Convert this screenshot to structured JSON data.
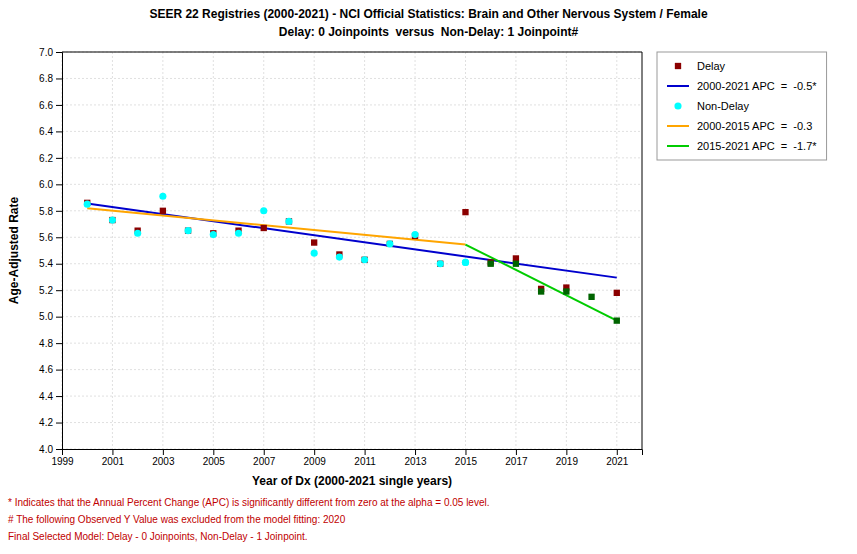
{
  "chart_data": {
    "type": "scatter",
    "title": "SEER 22 Registries (2000-2021) - NCI Official Statistics: Brain and Other Nervous System / Female",
    "subtitle": "Delay: 0 Joinpoints  versus  Non-Delay: 1 Joinpoint#",
    "x_label": "Year of Dx (2000-2021 single years)",
    "y_label": "Age-Adjusted Rate",
    "xlim": [
      1999,
      2022
    ],
    "ylim": [
      4.0,
      7.0
    ],
    "xticks": [
      1999,
      2001,
      2003,
      2005,
      2007,
      2009,
      2011,
      2013,
      2015,
      2017,
      2019,
      2021
    ],
    "yticks": [
      {
        "value": 4.0,
        "label": "4.0"
      },
      4.2,
      4.4,
      4.6,
      4.8,
      {
        "value": 5.0,
        "label": "5.0"
      },
      5.2,
      5.4,
      5.6,
      5.8,
      {
        "value": 6.0,
        "label": "6.0"
      },
      6.2,
      6.4,
      6.6,
      6.8,
      {
        "value": 7.0,
        "label": "7.0"
      }
    ],
    "grid": true,
    "legend": "right",
    "series": [
      {
        "name": "Delay",
        "type": "scatter",
        "marker": "square",
        "color": "#8B0000",
        "x": [
          2000,
          2001,
          2002,
          2003,
          2004,
          2005,
          2006,
          2007,
          2008,
          2009,
          2010,
          2011,
          2012,
          2013,
          2014,
          2015,
          2016,
          2017,
          2018,
          2019,
          2021
        ],
        "values": [
          5.86,
          5.73,
          5.65,
          5.8,
          5.65,
          5.63,
          5.65,
          5.67,
          5.72,
          5.56,
          5.47,
          5.43,
          5.55,
          5.61,
          5.4,
          5.79,
          5.41,
          5.44,
          5.21,
          5.22,
          5.18
        ]
      },
      {
        "name": "2000-2021 APC  =  -0.5*",
        "type": "line",
        "color": "#0000CD",
        "x": [
          2000,
          2021
        ],
        "values": [
          5.855,
          5.295
        ]
      },
      {
        "name": "Non-Delay",
        "type": "scatter",
        "marker": "circle",
        "color": "#00FFFF",
        "x": [
          2000,
          2001,
          2002,
          2003,
          2004,
          2005,
          2006,
          2007,
          2008,
          2009,
          2010,
          2011,
          2012,
          2013,
          2014,
          2015
        ],
        "values": [
          5.85,
          5.73,
          5.63,
          5.91,
          5.65,
          5.62,
          5.63,
          5.8,
          5.72,
          5.48,
          5.45,
          5.43,
          5.55,
          5.62,
          5.4,
          5.41
        ]
      },
      {
        "name": "2000-2015 APC  =  -0.3",
        "type": "line",
        "color": "#FFA500",
        "x": [
          2000,
          2015
        ],
        "values": [
          5.82,
          5.545
        ]
      },
      {
        "name": "2015-2021 APC  =  -1.7*",
        "type": "line",
        "color": "#00CC00",
        "x": [
          2015,
          2021
        ],
        "values": [
          5.545,
          4.97
        ]
      },
      {
        "type": "scatter",
        "marker": "square",
        "color": "#006400",
        "x": [
          2016,
          2017,
          2018,
          2019,
          2020,
          2021
        ],
        "values": [
          5.4,
          5.4,
          5.19,
          5.19,
          5.15,
          4.97
        ]
      },
      {
        "type": "scatter",
        "marker": "circle",
        "color": "#00FFFF",
        "x": [
          2015
        ],
        "values": [
          5.41
        ]
      }
    ],
    "annotations": [
      "* Indicates that the Annual Percent Change (APC) is significantly different from zero at the alpha = 0.05 level.",
      "# The following Observed Y Value was excluded from the model fitting: 2020",
      "Final Selected Model: Delay - 0 Joinpoints, Non-Delay - 1 Joinpoint."
    ]
  }
}
